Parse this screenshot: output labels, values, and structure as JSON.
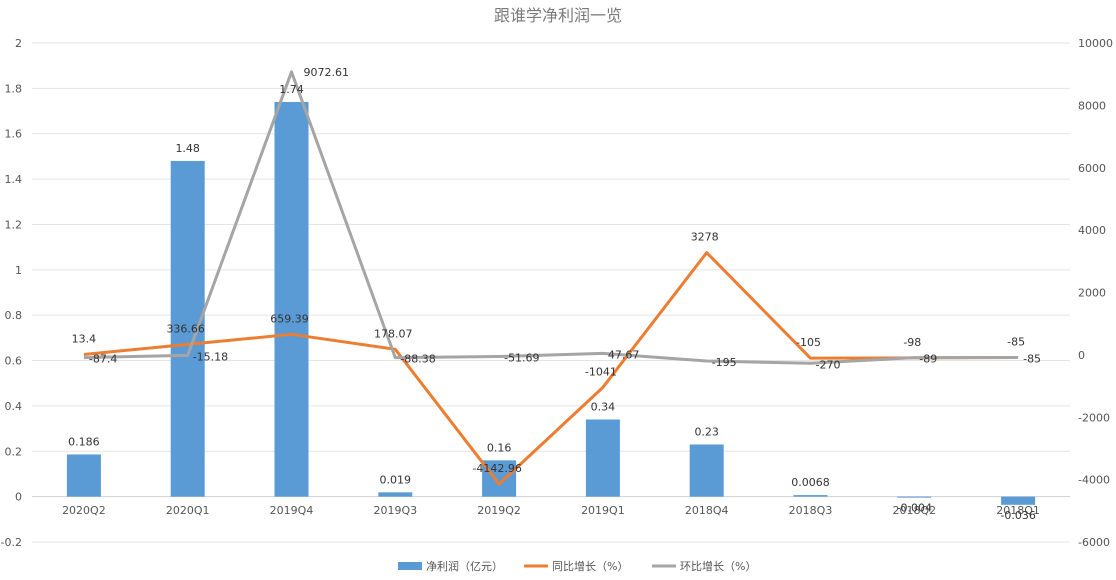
{
  "chart_data": {
    "type": "bar+line",
    "title": "跟谁学净利润一览",
    "categories": [
      "2020Q2",
      "2020Q1",
      "2019Q4",
      "2019Q3",
      "2019Q2",
      "2019Q1",
      "2018Q4",
      "2018Q3",
      "2018Q2",
      "2018Q1"
    ],
    "left_axis": {
      "ylim": [
        -0.2,
        2
      ],
      "ticks": [
        "-0.2",
        "0",
        "0.2",
        "0.4",
        "0.6",
        "0.8",
        "1",
        "1.2",
        "1.4",
        "1.6",
        "1.8",
        "2"
      ]
    },
    "right_axis": {
      "ylim": [
        -6000,
        10000
      ],
      "ticks": [
        "-6000",
        "-4000",
        "-2000",
        "0",
        "2000",
        "4000",
        "6000",
        "8000",
        "10000"
      ]
    },
    "grid": true,
    "legend_position": "bottom",
    "series": [
      {
        "name": "净利润（亿元）",
        "type": "bar",
        "axis": "left",
        "color": "#5b9bd5",
        "values": [
          0.186,
          1.48,
          1.74,
          0.019,
          0.16,
          0.34,
          0.23,
          0.0068,
          -0.004,
          -0.036
        ],
        "labels": [
          "0.186",
          "1.48",
          "1.74",
          "0.019",
          "0.16",
          "0.34",
          "0.23",
          "0.0068",
          "-0.004",
          "-0.036"
        ]
      },
      {
        "name": "同比增长（%）",
        "type": "line",
        "axis": "right",
        "color": "#ed7d31",
        "values": [
          13.4,
          336.66,
          659.39,
          178.07,
          -4142.96,
          -1041,
          3278,
          -105,
          -98,
          -85
        ],
        "labels": [
          "13.4",
          "336.66",
          "659.39",
          "178.07",
          "-4142.96",
          "-1041",
          "3278",
          "-105",
          "-98",
          "-85"
        ]
      },
      {
        "name": "环比增长（%）",
        "type": "line",
        "axis": "right",
        "color": "#a5a5a5",
        "values": [
          -87.4,
          -15.18,
          9072.61,
          -88.38,
          -51.69,
          47.67,
          -195,
          -270,
          -89,
          -85
        ],
        "labels": [
          "-87.4",
          "-15.18",
          "9072.61",
          "-88.38",
          "-51.69",
          "47.67",
          "-195",
          "-270",
          "-89",
          "-85"
        ]
      }
    ]
  }
}
